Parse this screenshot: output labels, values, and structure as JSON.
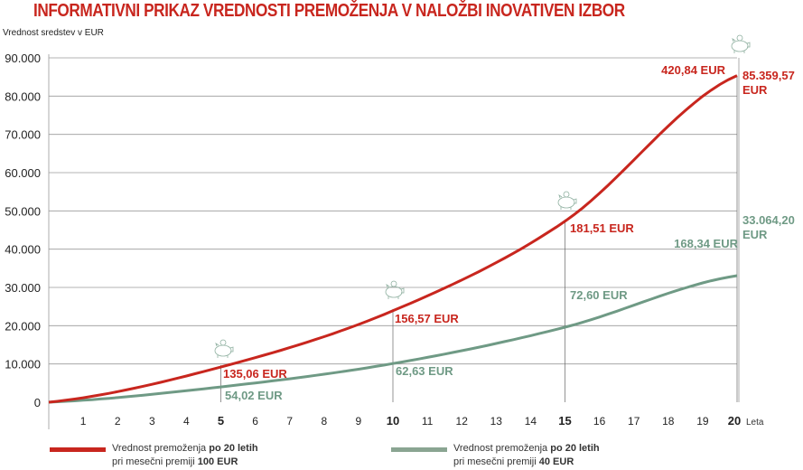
{
  "chart_data": {
    "type": "line",
    "title": "INFORMATIVNI PRIKAZ VREDNOSTI PREMOŽENJA V NALOŽBI INOVATIVEN IZBOR",
    "ylabel": "Vrednost sredstev v EUR",
    "xlabel": "Leta",
    "ylim": [
      0,
      90000
    ],
    "xlim": [
      0,
      20
    ],
    "grid": true,
    "y_ticks": [
      "0",
      "10.000",
      "20.000",
      "30.000",
      "40.000",
      "50.000",
      "60.000",
      "70.000",
      "80.000",
      "90.000"
    ],
    "x_ticks": [
      "1",
      "2",
      "3",
      "4",
      "5",
      "6",
      "7",
      "8",
      "9",
      "10",
      "11",
      "12",
      "13",
      "14",
      "15",
      "16",
      "17",
      "18",
      "19",
      "20"
    ],
    "bold_x_ticks": [
      "5",
      "10",
      "15",
      "20"
    ],
    "x": [
      0,
      5,
      10,
      15,
      20
    ],
    "series": [
      {
        "color": "#c8261e",
        "values": [
          0,
          9200,
          23900,
          47300,
          85359.57
        ]
      },
      {
        "color": "#6f9a85",
        "values": [
          0,
          4000,
          10100,
          19600,
          33064.2
        ]
      }
    ],
    "annotations": [
      {
        "series": 0,
        "x": 5,
        "text": "135,06 EUR"
      },
      {
        "series": 0,
        "x": 10,
        "text": "156,57 EUR"
      },
      {
        "series": 0,
        "x": 15,
        "text": "181,51 EUR"
      },
      {
        "series": 0,
        "x": 20,
        "text": "420,84 EUR"
      },
      {
        "series": 0,
        "x": 20,
        "text": "85.359,57 EUR",
        "final": true
      },
      {
        "series": 1,
        "x": 5,
        "text": "54,02 EUR"
      },
      {
        "series": 1,
        "x": 10,
        "text": "62,63 EUR"
      },
      {
        "series": 1,
        "x": 15,
        "text": "72,60 EUR"
      },
      {
        "series": 1,
        "x": 20,
        "text": "168,34 EUR"
      },
      {
        "series": 1,
        "x": 20,
        "text": "33.064,20 EUR",
        "final": true
      }
    ],
    "icons": [
      "piggy-bank-icon"
    ],
    "legend": {
      "placement": "bottom",
      "items": [
        {
          "line1_a": "Vrednost premoženja ",
          "line1_b": "po 20 letih",
          "line2_a": "pri mesečni premiji ",
          "line2_b": "100 EUR"
        },
        {
          "line1_a": "Vrednost premoženja ",
          "line1_b": "po 20 letih",
          "line2_a": "pri mesečni premiji ",
          "line2_b": "40 EUR"
        }
      ]
    }
  }
}
